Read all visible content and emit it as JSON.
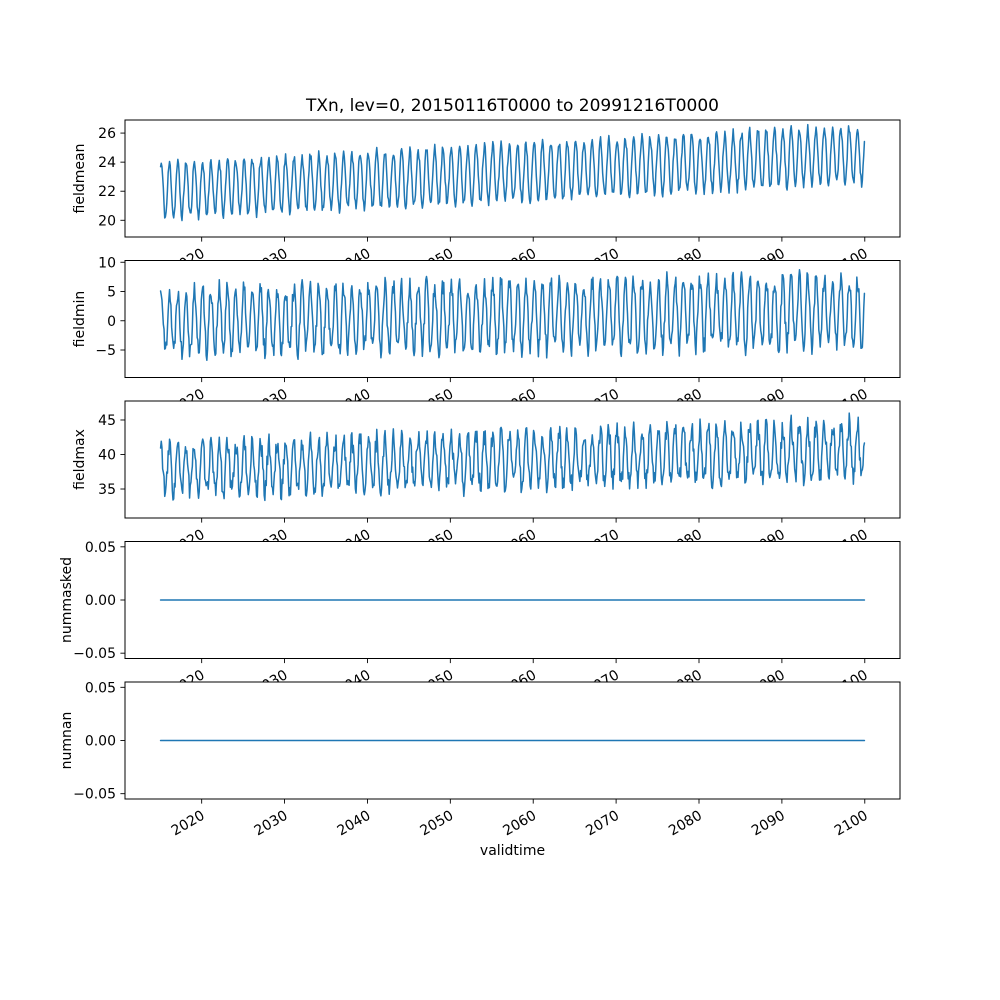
{
  "figure": {
    "background": "#ffffff",
    "text_color": "#000000",
    "line_color": "#1f77b4"
  },
  "chart_data": {
    "type": "line",
    "title": "TXn, lev=0, 20150116T0000 to 20991216T0000",
    "xlabel": "validtime",
    "grid": false,
    "legend": "none",
    "x": {
      "start_year": 2015.0417,
      "end_year": 2099.9583,
      "samples_per_year": 12,
      "n_points": 1020
    },
    "xlim": [
      2010.75,
      2104.25
    ],
    "xticks": [
      {
        "v": 2020,
        "label": "2020"
      },
      {
        "v": 2030,
        "label": "2030"
      },
      {
        "v": 2040,
        "label": "2040"
      },
      {
        "v": 2050,
        "label": "2050"
      },
      {
        "v": 2060,
        "label": "2060"
      },
      {
        "v": 2070,
        "label": "2070"
      },
      {
        "v": 2080,
        "label": "2080"
      },
      {
        "v": 2090,
        "label": "2090"
      },
      {
        "v": 2100,
        "label": "2100"
      }
    ],
    "xtick_rotation_deg": 30,
    "subplots": [
      {
        "ylabel": "fieldmean",
        "ylim": [
          18.85,
          26.9
        ],
        "yticks": [
          {
            "v": 20,
            "label": "20"
          },
          {
            "v": 22,
            "label": "22"
          },
          {
            "v": 24,
            "label": "24"
          },
          {
            "v": 26,
            "label": "26"
          }
        ],
        "series": {
          "kind": "seasonal",
          "description": "monthly TXn field mean, annual cycle rising from ~20.2-23.9 in 2015 to ~22.6-26.5 in 2099",
          "mid_start": 22.05,
          "mid_end": 24.55,
          "amp_start": 1.85,
          "amp_end": 1.95,
          "noise": 0.33,
          "peak_frac": 0.12,
          "seed": 11
        }
      },
      {
        "ylabel": "fieldmin",
        "ylim": [
          -9.7,
          10.3
        ],
        "yticks": [
          {
            "v": -5,
            "label": "−5"
          },
          {
            "v": 0,
            "label": "0"
          },
          {
            "v": 5,
            "label": "5"
          },
          {
            "v": 10,
            "label": "10"
          }
        ],
        "series": {
          "kind": "seasonal",
          "description": "monthly TXn field minimum, noisy annual cycle between ~-7.5 and ~7 in 2015, ~-6 and ~9 in 2099",
          "mid_start": 0.0,
          "mid_end": 1.6,
          "amp_start": 5.3,
          "amp_end": 5.8,
          "noise": 1.7,
          "peak_frac": 0.12,
          "seed": 22
        }
      },
      {
        "ylabel": "fieldmax",
        "ylim": [
          30.8,
          47.75
        ],
        "yticks": [
          {
            "v": 35,
            "label": "35"
          },
          {
            "v": 40,
            "label": "40"
          },
          {
            "v": 45,
            "label": "45"
          }
        ],
        "series": {
          "kind": "seasonal",
          "description": "monthly TXn field maximum, noisy cycle between ~32.5 and ~42.5 in 2015, ~35 and ~46.5 in 2099",
          "mid_start": 37.7,
          "mid_end": 40.7,
          "amp_start": 3.5,
          "amp_end": 3.9,
          "noise": 1.5,
          "peak_frac": 0.12,
          "seed": 33
        }
      },
      {
        "ylabel": "nummasked",
        "ylim": [
          -0.055,
          0.055
        ],
        "yticks": [
          {
            "v": -0.05,
            "label": "−0.05"
          },
          {
            "v": 0,
            "label": "0.00"
          },
          {
            "v": 0.05,
            "label": "0.05"
          }
        ],
        "series": {
          "kind": "constant",
          "description": "number of masked points, constant zero",
          "value": 0
        }
      },
      {
        "ylabel": "numnan",
        "ylim": [
          -0.055,
          0.055
        ],
        "yticks": [
          {
            "v": -0.05,
            "label": "−0.05"
          },
          {
            "v": 0,
            "label": "0.00"
          },
          {
            "v": 0.05,
            "label": "0.05"
          }
        ],
        "series": {
          "kind": "constant",
          "description": "number of NaN points, constant zero",
          "value": 0
        }
      }
    ]
  }
}
